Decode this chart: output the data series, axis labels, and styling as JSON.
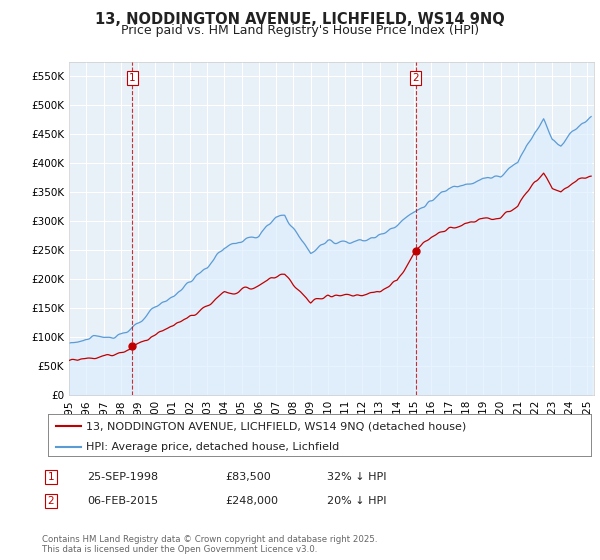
{
  "title": "13, NODDINGTON AVENUE, LICHFIELD, WS14 9NQ",
  "subtitle": "Price paid vs. HM Land Registry's House Price Index (HPI)",
  "hpi_color": "#5b9bd5",
  "hpi_fill_color": "#ddeeff",
  "price_color": "#c00000",
  "marker1_date": "1998-09-01",
  "marker1_price": 83500,
  "marker2_date": "2015-02-01",
  "marker2_price": 248000,
  "legend_entries": [
    "13, NODDINGTON AVENUE, LICHFIELD, WS14 9NQ (detached house)",
    "HPI: Average price, detached house, Lichfield"
  ],
  "footer": "Contains HM Land Registry data © Crown copyright and database right 2025.\nThis data is licensed under the Open Government Licence v3.0.",
  "yticks": [
    0,
    50000,
    100000,
    150000,
    200000,
    250000,
    300000,
    350000,
    400000,
    450000,
    500000,
    550000
  ],
  "ytick_labels": [
    "£0",
    "£50K",
    "£100K",
    "£150K",
    "£200K",
    "£250K",
    "£300K",
    "£350K",
    "£400K",
    "£450K",
    "£500K",
    "£550K"
  ],
  "plot_bg_color": "#e8f0f8",
  "background_color": "#ffffff",
  "grid_color": "#ffffff",
  "title_fontsize": 10.5,
  "subtitle_fontsize": 9,
  "tick_fontsize": 7.5,
  "legend_fontsize": 8,
  "hpi_anchors_year": [
    1995.0,
    1996.0,
    1997.0,
    1998.0,
    1999.0,
    2000.0,
    2001.0,
    2002.0,
    2003.0,
    2004.0,
    2005.0,
    2006.0,
    2007.0,
    2007.5,
    2008.5,
    2009.0,
    2009.5,
    2010.0,
    2011.0,
    2012.0,
    2013.0,
    2014.0,
    2015.0,
    2016.0,
    2017.0,
    2018.0,
    2019.0,
    2020.0,
    2020.5,
    2021.0,
    2021.5,
    2022.0,
    2022.5,
    2023.0,
    2023.5,
    2024.0,
    2024.5,
    2025.3
  ],
  "hpi_anchors_val": [
    90000,
    95000,
    100000,
    105000,
    120000,
    150000,
    170000,
    195000,
    220000,
    255000,
    265000,
    275000,
    305000,
    310000,
    265000,
    245000,
    255000,
    265000,
    265000,
    265000,
    275000,
    295000,
    315000,
    335000,
    355000,
    365000,
    375000,
    375000,
    390000,
    400000,
    430000,
    455000,
    475000,
    440000,
    430000,
    450000,
    465000,
    480000
  ],
  "price_anchors_year": [
    1995.0,
    1996.0,
    1997.0,
    1998.0,
    1998.75,
    1999.0,
    2000.0,
    2001.0,
    2002.0,
    2003.0,
    2004.0,
    2005.0,
    2006.0,
    2007.0,
    2007.5,
    2008.5,
    2009.0,
    2009.5,
    2010.0,
    2011.0,
    2012.0,
    2013.0,
    2014.0,
    2015.1,
    2015.5,
    2016.0,
    2017.0,
    2018.0,
    2019.0,
    2020.0,
    2020.5,
    2021.0,
    2021.5,
    2022.0,
    2022.5,
    2023.0,
    2023.5,
    2024.0,
    2024.5,
    2025.3
  ],
  "price_anchors_val": [
    60000,
    63000,
    67000,
    72000,
    83500,
    88000,
    105000,
    118000,
    135000,
    152000,
    175000,
    180000,
    188000,
    205000,
    208000,
    175000,
    158000,
    165000,
    172000,
    172000,
    170000,
    178000,
    195000,
    248000,
    260000,
    272000,
    288000,
    295000,
    305000,
    305000,
    315000,
    325000,
    348000,
    368000,
    383000,
    355000,
    348000,
    362000,
    372000,
    375000
  ]
}
